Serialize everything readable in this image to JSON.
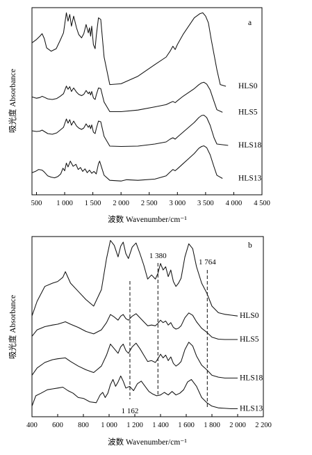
{
  "chart_data": [
    {
      "type": "line",
      "panel": "a",
      "xlabel": "波数 Wavenumber/cm⁻¹",
      "ylabel": "吸光度 Absorbance",
      "xlim": [
        420,
        4500
      ],
      "xticks": [
        500,
        1000,
        1500,
        2000,
        2500,
        3000,
        3500,
        4000,
        4500
      ],
      "xtick_labels": [
        "500",
        "1 000",
        "1 500",
        "2 000",
        "2 500",
        "3 000",
        "3 500",
        "4 000",
        "4 500"
      ],
      "grid": false,
      "series": [
        {
          "name": "HLS0",
          "offset": 3,
          "x": [
            420,
            500,
            560,
            600,
            640,
            680,
            760,
            850,
            920,
            980,
            1030,
            1060,
            1090,
            1120,
            1160,
            1210,
            1250,
            1300,
            1340,
            1380,
            1420,
            1440,
            1460,
            1480,
            1510,
            1540,
            1560,
            1600,
            1640,
            1700,
            1800,
            2000,
            2300,
            2600,
            2800,
            2870,
            2920,
            2960,
            3000,
            3100,
            3200,
            3300,
            3400,
            3450,
            3500,
            3550,
            3600,
            3700,
            3760,
            3860
          ],
          "y": [
            0.62,
            0.66,
            0.7,
            0.73,
            0.67,
            0.56,
            0.52,
            0.55,
            0.65,
            0.74,
            0.98,
            0.88,
            0.96,
            0.82,
            0.94,
            0.8,
            0.72,
            0.68,
            0.73,
            0.84,
            0.74,
            0.8,
            0.7,
            0.82,
            0.6,
            0.55,
            0.7,
            0.92,
            0.9,
            0.45,
            0.12,
            0.13,
            0.22,
            0.36,
            0.45,
            0.52,
            0.58,
            0.54,
            0.6,
            0.72,
            0.82,
            0.92,
            0.97,
            0.98,
            0.94,
            0.86,
            0.66,
            0.3,
            0.12,
            0.1
          ]
        },
        {
          "name": "HLS5",
          "offset": 2,
          "x": [
            420,
            500,
            560,
            600,
            640,
            700,
            780,
            860,
            920,
            980,
            1030,
            1060,
            1090,
            1120,
            1160,
            1210,
            1250,
            1300,
            1340,
            1380,
            1420,
            1440,
            1460,
            1480,
            1510,
            1540,
            1560,
            1600,
            1640,
            1700,
            1800,
            2000,
            2300,
            2600,
            2800,
            2870,
            2920,
            2960,
            3000,
            3100,
            3200,
            3300,
            3380,
            3430,
            3470,
            3520,
            3580,
            3650,
            3700,
            3800
          ],
          "y": [
            0.58,
            0.54,
            0.56,
            0.6,
            0.57,
            0.52,
            0.5,
            0.53,
            0.6,
            0.68,
            0.92,
            0.82,
            0.9,
            0.75,
            0.86,
            0.73,
            0.66,
            0.62,
            0.66,
            0.78,
            0.68,
            0.74,
            0.64,
            0.75,
            0.55,
            0.5,
            0.64,
            0.86,
            0.84,
            0.42,
            0.12,
            0.12,
            0.17,
            0.27,
            0.34,
            0.4,
            0.44,
            0.4,
            0.46,
            0.6,
            0.72,
            0.84,
            0.96,
            1.02,
            1.04,
            0.98,
            0.8,
            0.44,
            0.18,
            0.1
          ]
        },
        {
          "name": "HLS18",
          "offset": 1,
          "x": [
            420,
            500,
            560,
            600,
            640,
            700,
            780,
            860,
            920,
            980,
            1030,
            1060,
            1090,
            1120,
            1160,
            1210,
            1250,
            1300,
            1340,
            1380,
            1420,
            1440,
            1460,
            1480,
            1510,
            1540,
            1560,
            1600,
            1640,
            1700,
            1800,
            2000,
            2300,
            2600,
            2800,
            2870,
            2920,
            2960,
            3000,
            3100,
            3200,
            3300,
            3380,
            3430,
            3470,
            3520,
            3580,
            3650,
            3700,
            3900
          ],
          "y": [
            0.6,
            0.58,
            0.59,
            0.62,
            0.58,
            0.52,
            0.5,
            0.54,
            0.62,
            0.7,
            0.94,
            0.82,
            0.92,
            0.76,
            0.88,
            0.74,
            0.68,
            0.64,
            0.68,
            0.8,
            0.7,
            0.76,
            0.66,
            0.77,
            0.56,
            0.52,
            0.66,
            0.88,
            0.86,
            0.44,
            0.16,
            0.15,
            0.16,
            0.22,
            0.28,
            0.36,
            0.4,
            0.36,
            0.42,
            0.56,
            0.7,
            0.84,
            0.98,
            1.04,
            1.05,
            0.98,
            0.76,
            0.4,
            0.22,
            0.18
          ]
        },
        {
          "name": "HLS13",
          "offset": 0,
          "x": [
            420,
            480,
            540,
            600,
            640,
            700,
            760,
            820,
            880,
            930,
            970,
            1000,
            1030,
            1060,
            1100,
            1150,
            1200,
            1240,
            1280,
            1320,
            1360,
            1400,
            1440,
            1480,
            1520,
            1560,
            1600,
            1620,
            1660,
            1700,
            1800,
            2000,
            2100,
            2300,
            2600,
            2800,
            2870,
            2920,
            2960,
            3000,
            3100,
            3200,
            3300,
            3380,
            3430,
            3470,
            3520,
            3580,
            3650,
            3700,
            3800
          ],
          "y": [
            0.3,
            0.34,
            0.4,
            0.38,
            0.32,
            0.2,
            0.16,
            0.14,
            0.18,
            0.26,
            0.44,
            0.36,
            0.6,
            0.48,
            0.66,
            0.5,
            0.56,
            0.4,
            0.46,
            0.34,
            0.42,
            0.3,
            0.38,
            0.28,
            0.34,
            0.26,
            0.58,
            0.66,
            0.44,
            0.22,
            0.06,
            0.04,
            0.08,
            0.06,
            0.1,
            0.2,
            0.32,
            0.4,
            0.36,
            0.42,
            0.58,
            0.74,
            0.9,
            1.06,
            1.12,
            1.14,
            1.08,
            0.86,
            0.48,
            0.22,
            0.12
          ]
        }
      ]
    },
    {
      "type": "line",
      "panel": "b",
      "xlabel": "波数 Wavenumber/cm⁻¹",
      "ylabel": "吸光度 Absorbance",
      "xlim": [
        400,
        2200
      ],
      "xticks": [
        400,
        600,
        800,
        1000,
        1200,
        1400,
        1600,
        1800,
        2000,
        2200
      ],
      "xtick_labels": [
        "400",
        "600",
        "800",
        "1 000",
        "1 200",
        "1 400",
        "1 600",
        "1 800",
        "2 000",
        "2 200"
      ],
      "grid": false,
      "annotations": [
        {
          "text": "1 380",
          "x": 1380
        },
        {
          "text": "1 764",
          "x": 1764
        },
        {
          "text": "1 162",
          "x": 1162
        }
      ],
      "series": [
        {
          "name": "HLS0",
          "offset": 3,
          "x": [
            400,
            440,
            500,
            560,
            600,
            640,
            660,
            700,
            760,
            820,
            880,
            940,
            980,
            1010,
            1040,
            1070,
            1090,
            1110,
            1130,
            1150,
            1180,
            1210,
            1240,
            1270,
            1300,
            1330,
            1360,
            1380,
            1400,
            1420,
            1440,
            1460,
            1480,
            1500,
            1520,
            1540,
            1560,
            1590,
            1620,
            1650,
            1680,
            1720,
            1760,
            1800,
            1850,
            1900,
            1950,
            2000
          ],
          "y": [
            0.1,
            0.28,
            0.46,
            0.5,
            0.52,
            0.57,
            0.64,
            0.5,
            0.4,
            0.3,
            0.22,
            0.42,
            0.8,
            1.02,
            0.96,
            0.82,
            0.95,
            1.0,
            0.86,
            0.8,
            0.94,
            0.99,
            0.86,
            0.72,
            0.55,
            0.6,
            0.55,
            0.62,
            0.74,
            0.66,
            0.7,
            0.58,
            0.66,
            0.52,
            0.46,
            0.5,
            0.56,
            0.82,
            0.98,
            0.92,
            0.7,
            0.5,
            0.38,
            0.22,
            0.14,
            0.12,
            0.11,
            0.1
          ]
        },
        {
          "name": "HLS5",
          "offset": 2,
          "x": [
            400,
            440,
            500,
            560,
            600,
            660,
            700,
            760,
            820,
            880,
            940,
            980,
            1010,
            1040,
            1070,
            1090,
            1110,
            1130,
            1150,
            1180,
            1210,
            1240,
            1270,
            1300,
            1330,
            1360,
            1380,
            1400,
            1420,
            1440,
            1460,
            1480,
            1500,
            1520,
            1540,
            1560,
            1590,
            1620,
            1650,
            1680,
            1720,
            1760,
            1800,
            1850,
            1900,
            1950,
            2000
          ],
          "y": [
            0.2,
            0.36,
            0.44,
            0.48,
            0.5,
            0.56,
            0.5,
            0.42,
            0.32,
            0.26,
            0.36,
            0.54,
            0.74,
            0.68,
            0.6,
            0.7,
            0.74,
            0.64,
            0.6,
            0.7,
            0.76,
            0.66,
            0.56,
            0.46,
            0.48,
            0.46,
            0.52,
            0.6,
            0.54,
            0.58,
            0.48,
            0.54,
            0.42,
            0.38,
            0.4,
            0.46,
            0.66,
            0.78,
            0.72,
            0.56,
            0.4,
            0.3,
            0.18,
            0.13,
            0.12,
            0.12,
            0.12
          ]
        },
        {
          "name": "HLS18",
          "offset": 1,
          "x": [
            400,
            440,
            500,
            560,
            600,
            660,
            700,
            760,
            820,
            880,
            940,
            980,
            1010,
            1040,
            1070,
            1090,
            1110,
            1130,
            1150,
            1180,
            1210,
            1240,
            1270,
            1300,
            1330,
            1360,
            1380,
            1400,
            1420,
            1440,
            1460,
            1480,
            1500,
            1520,
            1540,
            1560,
            1590,
            1620,
            1650,
            1680,
            1720,
            1760,
            1800,
            1850,
            1900,
            1950,
            2000
          ],
          "y": [
            0.16,
            0.32,
            0.44,
            0.5,
            0.52,
            0.54,
            0.46,
            0.36,
            0.28,
            0.22,
            0.36,
            0.6,
            0.84,
            0.74,
            0.64,
            0.78,
            0.84,
            0.7,
            0.64,
            0.78,
            0.86,
            0.74,
            0.6,
            0.46,
            0.48,
            0.44,
            0.52,
            0.62,
            0.54,
            0.6,
            0.48,
            0.56,
            0.42,
            0.36,
            0.4,
            0.46,
            0.72,
            0.88,
            0.8,
            0.58,
            0.38,
            0.28,
            0.16,
            0.12,
            0.1,
            0.1,
            0.1
          ]
        },
        {
          "name": "HLS13",
          "offset": 0,
          "x": [
            400,
            430,
            470,
            520,
            560,
            600,
            640,
            680,
            720,
            760,
            800,
            850,
            900,
            930,
            950,
            970,
            990,
            1010,
            1030,
            1050,
            1070,
            1090,
            1110,
            1130,
            1160,
            1190,
            1220,
            1250,
            1280,
            1310,
            1340,
            1370,
            1400,
            1430,
            1460,
            1490,
            1520,
            1550,
            1580,
            1610,
            1640,
            1680,
            1720,
            1760,
            1800,
            1850,
            1900,
            1950,
            2000
          ],
          "y": [
            0.1,
            0.34,
            0.4,
            0.48,
            0.5,
            0.52,
            0.54,
            0.46,
            0.4,
            0.3,
            0.28,
            0.2,
            0.18,
            0.36,
            0.42,
            0.3,
            0.4,
            0.6,
            0.72,
            0.56,
            0.66,
            0.8,
            0.68,
            0.52,
            0.56,
            0.46,
            0.62,
            0.68,
            0.56,
            0.44,
            0.38,
            0.34,
            0.36,
            0.42,
            0.36,
            0.44,
            0.36,
            0.4,
            0.48,
            0.66,
            0.72,
            0.56,
            0.3,
            0.18,
            0.1,
            0.06,
            0.05,
            0.04,
            0.04
          ]
        }
      ]
    }
  ],
  "panels": [
    {
      "label": "a",
      "ylabel": "吸光度 Absorbance",
      "xlabel": "波数 Wavenumber/cm⁻¹"
    },
    {
      "label": "b",
      "ylabel": "吸光度 Absorbance",
      "xlabel": "波数 Wavenumber/cm⁻¹"
    }
  ]
}
